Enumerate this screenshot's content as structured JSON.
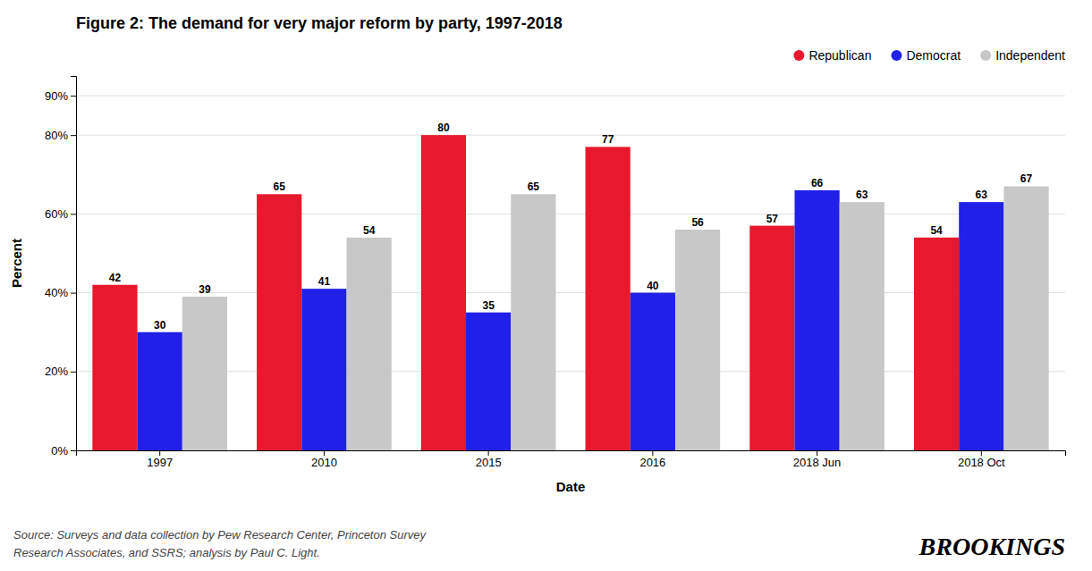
{
  "chart_data": {
    "type": "bar",
    "title": "Figure 2: The demand for very major reform by party, 1997-2018",
    "xlabel": "Date",
    "ylabel": "Percent",
    "categories": [
      "1997",
      "2010",
      "2015",
      "2016",
      "2018 Jun",
      "2018 Oct"
    ],
    "series": [
      {
        "name": "Republican",
        "color": "#e8192c",
        "values": [
          42,
          65,
          80,
          77,
          57,
          54
        ]
      },
      {
        "name": "Democrat",
        "color": "#2020e8",
        "values": [
          30,
          41,
          35,
          40,
          66,
          63
        ]
      },
      {
        "name": "Independent",
        "color": "#c8c8c8",
        "values": [
          39,
          54,
          65,
          56,
          63,
          67
        ]
      }
    ],
    "ylim": [
      0,
      95
    ],
    "yticks": [
      {
        "value": 0,
        "label": "0%"
      },
      {
        "value": 20,
        "label": "20%"
      },
      {
        "value": 40,
        "label": "40%"
      },
      {
        "value": 60,
        "label": "60%"
      },
      {
        "value": 80,
        "label": "80%"
      },
      {
        "value": 90,
        "label": "90%"
      }
    ],
    "grid": true,
    "legend": "top-right",
    "data_labels": true,
    "annotations": [
      "Source: Surveys and data collection by Pew Research Center, Princeton Survey",
      "Research Associates, and SSRS; analysis by Paul C. Light.",
      "BROOKINGS"
    ]
  }
}
